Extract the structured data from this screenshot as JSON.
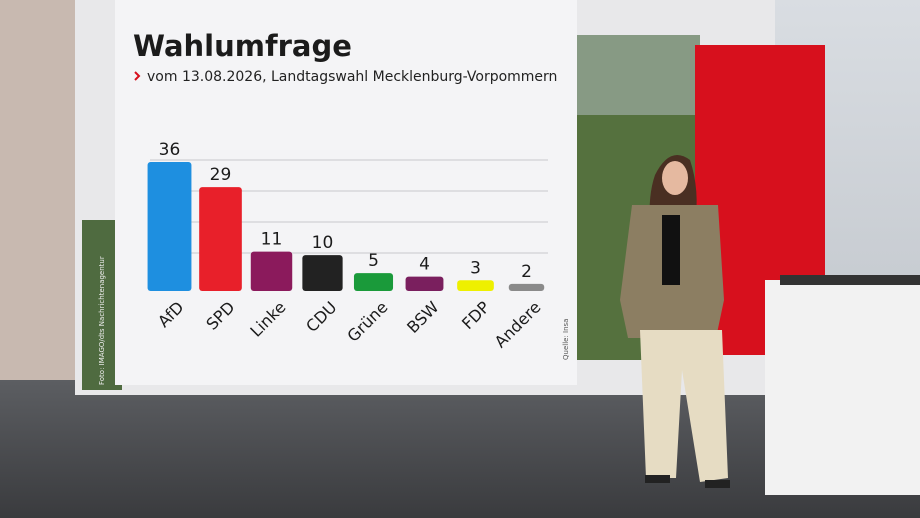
{
  "chart_data": {
    "type": "bar",
    "title": "Wahlumfrage",
    "subtitle": "vom 13.08.2026, Landtagswahl Mecklenburg-Vorpommern",
    "source": "Quelle: Insa",
    "photo_credit": "Foto: IMAGO/dts Nachrichtenagentur",
    "categories": [
      "AfD",
      "SPD",
      "Linke",
      "CDU",
      "Grüne",
      "BSW",
      "FDP",
      "Andere"
    ],
    "values": [
      36,
      29,
      11,
      10,
      5,
      4,
      3,
      2
    ],
    "colors": [
      "#1e8fe0",
      "#e8202a",
      "#8b1a5c",
      "#222222",
      "#1a9a3a",
      "#7a1f5e",
      "#eef000",
      "#8a8a8a"
    ]
  }
}
